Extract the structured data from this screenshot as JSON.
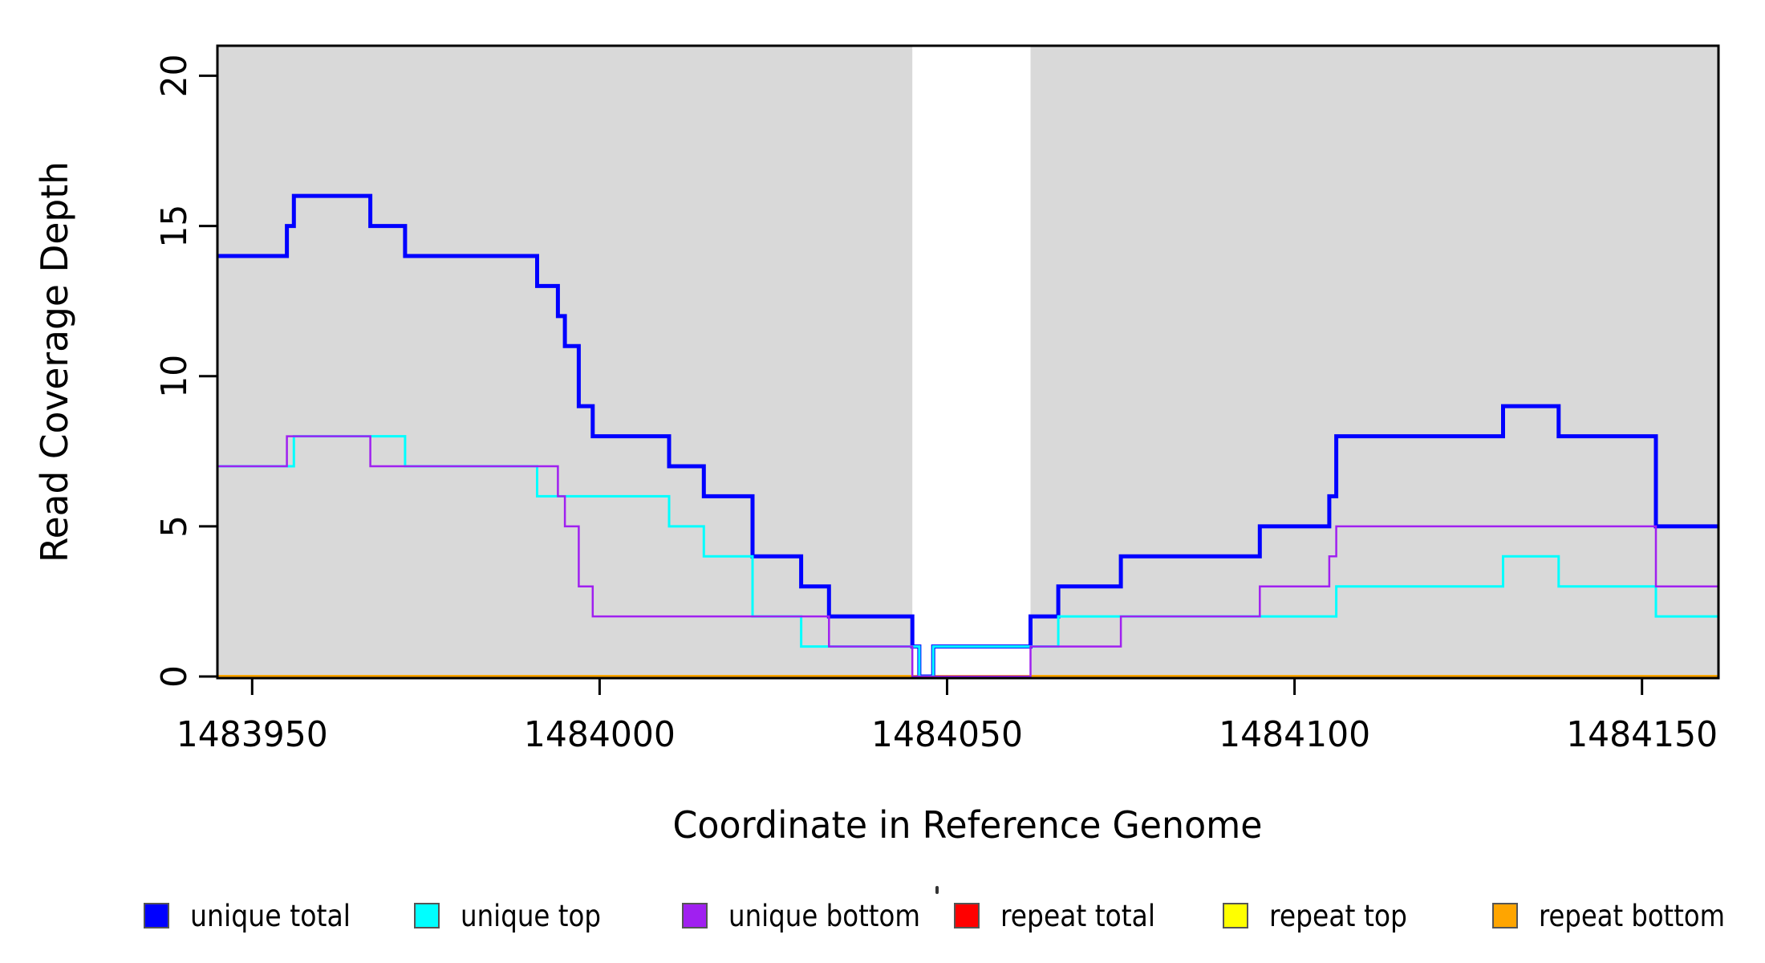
{
  "chart_data": {
    "type": "line",
    "subtype": "step-post",
    "title": "",
    "xlabel": "Coordinate in Reference Genome",
    "ylabel": "Read Coverage Depth",
    "x_range": [
      1483945,
      1484161
    ],
    "y_range": [
      0,
      21
    ],
    "x_ticks": [
      1483950,
      1484000,
      1484050,
      1484100,
      1484150
    ],
    "x_tick_labels": [
      "1483950",
      "1484000",
      "1484050",
      "1484100",
      "1484150"
    ],
    "y_ticks": [
      0,
      5,
      10,
      15,
      20
    ],
    "y_tick_labels": [
      "0",
      "5",
      "10",
      "15",
      "20"
    ],
    "grid": false,
    "legend_position": "bottom",
    "plot_background": "#ffffff",
    "frame_color": "#000000",
    "shaded_regions": [
      {
        "x_start": 1483945,
        "x_end": 1484045,
        "color": "#d9d9d9"
      },
      {
        "x_start": 1484062,
        "x_end": 1484161,
        "color": "#d9d9d9"
      }
    ],
    "gap_region": {
      "x_start": 1484045,
      "x_end": 1484062,
      "color": "#ffffff"
    },
    "draw_order": [
      "repeat total",
      "repeat top",
      "repeat bottom",
      "unique total",
      "unique top",
      "unique bottom"
    ],
    "series": [
      {
        "name": "unique total",
        "color": "#0000ff",
        "line_width": 5,
        "steps": [
          [
            1483945,
            14
          ],
          [
            1483955,
            15
          ],
          [
            1483956,
            16
          ],
          [
            1483967,
            15
          ],
          [
            1483972,
            14
          ],
          [
            1483991,
            13
          ],
          [
            1483994,
            12
          ],
          [
            1483995,
            11
          ],
          [
            1483997,
            9
          ],
          [
            1483999,
            8
          ],
          [
            1484010,
            7
          ],
          [
            1484015,
            6
          ],
          [
            1484022,
            4
          ],
          [
            1484029,
            3
          ],
          [
            1484033,
            2
          ],
          [
            1484045,
            1
          ],
          [
            1484046,
            0
          ],
          [
            1484048,
            1
          ],
          [
            1484062,
            2
          ],
          [
            1484066,
            3
          ],
          [
            1484075,
            4
          ],
          [
            1484095,
            5
          ],
          [
            1484105,
            6
          ],
          [
            1484106,
            8
          ],
          [
            1484130,
            9
          ],
          [
            1484138,
            8
          ],
          [
            1484152,
            5
          ]
        ]
      },
      {
        "name": "unique top",
        "color": "#00ffff",
        "line_width": 3,
        "steps": [
          [
            1483945,
            7
          ],
          [
            1483956,
            8
          ],
          [
            1483972,
            7
          ],
          [
            1483991,
            6
          ],
          [
            1484010,
            5
          ],
          [
            1484015,
            4
          ],
          [
            1484022,
            2
          ],
          [
            1484029,
            1
          ],
          [
            1484046,
            0
          ],
          [
            1484048,
            1
          ],
          [
            1484066,
            2
          ],
          [
            1484106,
            3
          ],
          [
            1484130,
            4
          ],
          [
            1484138,
            3
          ],
          [
            1484152,
            2
          ]
        ]
      },
      {
        "name": "unique bottom",
        "color": "#a020f0",
        "line_width": 2.5,
        "steps": [
          [
            1483945,
            7
          ],
          [
            1483955,
            8
          ],
          [
            1483967,
            7
          ],
          [
            1483994,
            6
          ],
          [
            1483995,
            5
          ],
          [
            1483997,
            3
          ],
          [
            1483999,
            2
          ],
          [
            1484033,
            1
          ],
          [
            1484045,
            0
          ],
          [
            1484062,
            1
          ],
          [
            1484075,
            2
          ],
          [
            1484095,
            3
          ],
          [
            1484105,
            4
          ],
          [
            1484106,
            5
          ],
          [
            1484152,
            3
          ]
        ]
      },
      {
        "name": "repeat total",
        "color": "#ff0000",
        "line_width": 3,
        "steps": [
          [
            1483945,
            0
          ]
        ]
      },
      {
        "name": "repeat top",
        "color": "#ffff00",
        "line_width": 3,
        "steps": [
          [
            1483945,
            0
          ]
        ]
      },
      {
        "name": "repeat bottom",
        "color": "#ffa500",
        "line_width": 4,
        "steps": [
          [
            1483945,
            0
          ]
        ]
      }
    ]
  },
  "artifacts": {
    "stray_mark_above_legend": true
  }
}
